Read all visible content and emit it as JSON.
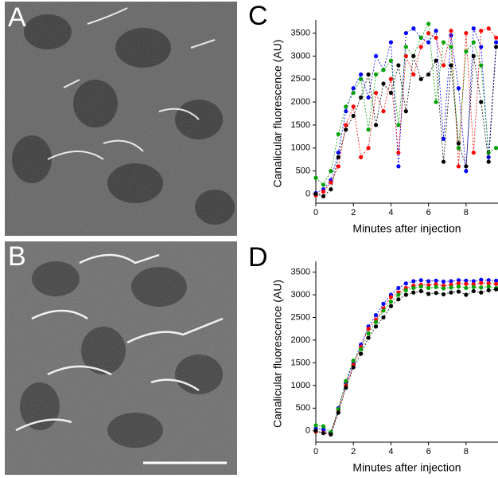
{
  "panels": [
    {
      "label": "A"
    },
    {
      "label": "B"
    }
  ],
  "chart_data": [
    {
      "type": "scatter",
      "label": "C",
      "ylabel": "Canalicular fluorescence (AU)",
      "xlabel": "Minutes after injection",
      "xlim": [
        0,
        9.7
      ],
      "xticks": [
        0,
        2,
        4,
        6,
        8
      ],
      "ylim": [
        -200,
        3700
      ],
      "yticks": [
        0,
        500,
        1000,
        1500,
        2000,
        2500,
        3000,
        3500
      ],
      "x": [
        0,
        0.4,
        0.8,
        1.2,
        1.6,
        2.0,
        2.4,
        2.8,
        3.2,
        3.6,
        4.0,
        4.4,
        4.8,
        5.2,
        5.6,
        6.0,
        6.4,
        6.8,
        7.2,
        7.6,
        8.0,
        8.4,
        8.8,
        9.2,
        9.6
      ],
      "series": [
        {
          "color": "#0000ff",
          "values": [
            20,
            100,
            300,
            900,
            1800,
            2300,
            2600,
            2100,
            3000,
            2700,
            3300,
            600,
            3500,
            3600,
            3400,
            3300,
            3550,
            1200,
            3450,
            2300,
            500,
            3600,
            3200,
            800,
            3300
          ]
        },
        {
          "color": "#ff0000",
          "values": [
            -30,
            50,
            250,
            600,
            1500,
            1900,
            800,
            1000,
            2200,
            1800,
            2500,
            900,
            3000,
            2600,
            3200,
            3500,
            3400,
            2800,
            3550,
            600,
            3500,
            900,
            3550,
            3600,
            3400
          ]
        },
        {
          "color": "#00a000",
          "values": [
            350,
            200,
            500,
            1300,
            1900,
            2200,
            2500,
            1400,
            2600,
            2700,
            2900,
            1500,
            3200,
            3000,
            3400,
            3700,
            2000,
            3300,
            3200,
            1000,
            3100,
            3300,
            2800,
            900,
            1000
          ]
        },
        {
          "color": "#000000",
          "values": [
            0,
            -50,
            100,
            800,
            1400,
            1700,
            2100,
            2600,
            1500,
            2400,
            2200,
            2800,
            1800,
            3000,
            2500,
            2600,
            2900,
            700,
            2800,
            1100,
            600,
            3000,
            2000,
            700,
            3200
          ]
        }
      ]
    },
    {
      "type": "scatter",
      "label": "D",
      "ylabel": "Canalicular fluorescence (AU)",
      "xlabel": "Minutes after injection",
      "xlim": [
        0,
        9.7
      ],
      "xticks": [
        0,
        2,
        4,
        6,
        8
      ],
      "ylim": [
        -250,
        3650
      ],
      "yticks": [
        0,
        500,
        1000,
        1500,
        2000,
        2500,
        3000,
        3500
      ],
      "x": [
        0,
        0.4,
        0.8,
        1.2,
        1.6,
        2.0,
        2.4,
        2.8,
        3.2,
        3.6,
        4.0,
        4.4,
        4.8,
        5.2,
        5.6,
        6.0,
        6.4,
        6.8,
        7.2,
        7.6,
        8.0,
        8.4,
        8.8,
        9.2,
        9.6
      ],
      "series": [
        {
          "color": "#0000ff",
          "values": [
            50,
            30,
            -60,
            500,
            1050,
            1500,
            1900,
            2300,
            2550,
            2800,
            3000,
            3150,
            3250,
            3300,
            3320,
            3300,
            3310,
            3290,
            3300,
            3320,
            3310,
            3300,
            3330,
            3320,
            3310
          ]
        },
        {
          "color": "#ff0000",
          "values": [
            -20,
            -40,
            -50,
            450,
            1000,
            1450,
            1850,
            2250,
            2450,
            2700,
            2950,
            3050,
            3150,
            3200,
            3220,
            3210,
            3230,
            3200,
            3220,
            3250,
            3240,
            3230,
            3260,
            3250,
            3240
          ]
        },
        {
          "color": "#00a000",
          "values": [
            120,
            100,
            -30,
            480,
            1100,
            1550,
            1800,
            2150,
            2400,
            2650,
            2850,
            3000,
            3100,
            3150,
            3180,
            3150,
            3170,
            3140,
            3160,
            3180,
            3150,
            3170,
            3160,
            3180,
            3150
          ]
        },
        {
          "color": "#000000",
          "values": [
            0,
            -50,
            -80,
            400,
            950,
            1400,
            1700,
            2050,
            2300,
            2500,
            2750,
            2900,
            3000,
            3050,
            3080,
            3020,
            3040,
            3010,
            3050,
            3070,
            3000,
            3080,
            3050,
            3100,
            3120
          ]
        }
      ]
    }
  ]
}
